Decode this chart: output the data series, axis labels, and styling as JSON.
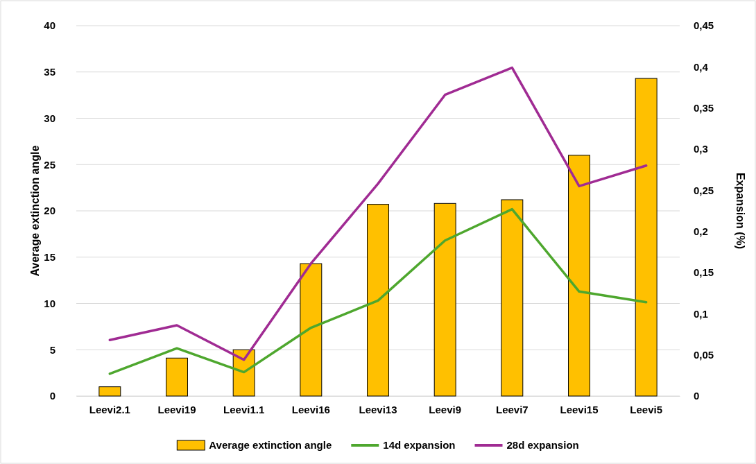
{
  "chart_data": {
    "type": "bar",
    "categories": [
      "Leevi2.1",
      "Leevi19",
      "Leevi1.1",
      "Leevi16",
      "Leevi13",
      "Leevi9",
      "Leevi7",
      "Leevi15",
      "Leevi5"
    ],
    "ylabel": "Average extinction angle",
    "y2label": "Expansion (%)",
    "ylim": [
      0,
      40
    ],
    "yticks": [
      0,
      5,
      10,
      15,
      20,
      25,
      30,
      35,
      40
    ],
    "y2lim": [
      0,
      0.45
    ],
    "y2ticks": [
      {
        "value": 0,
        "label": "0"
      },
      {
        "value": 0.05,
        "label": "0,05"
      },
      {
        "value": 0.1,
        "label": "0,1"
      },
      {
        "value": 0.15,
        "label": "0,15"
      },
      {
        "value": 0.2,
        "label": "0,2"
      },
      {
        "value": 0.25,
        "label": "0,25"
      },
      {
        "value": 0.3,
        "label": "0,3"
      },
      {
        "value": 0.35,
        "label": "0,35"
      },
      {
        "value": 0.4,
        "label": "0,4"
      },
      {
        "value": 0.45,
        "label": "0,45"
      }
    ],
    "grid": "y",
    "legend": "bottom",
    "series": [
      {
        "name": "Average extinction angle",
        "color": "#ffc000",
        "values": [
          1.0,
          4.1,
          5.0,
          14.3,
          20.7,
          20.8,
          21.2,
          26.0,
          34.3
        ]
      },
      {
        "name": "14d expansion",
        "type": "line",
        "axis": "y2",
        "color": "#4ea72e",
        "values": [
          0.027,
          0.058,
          0.029,
          0.083,
          0.116,
          0.189,
          0.227,
          0.127,
          0.114
        ]
      },
      {
        "name": "28d expansion",
        "type": "line",
        "axis": "y2",
        "color": "#a02b93",
        "values": [
          0.068,
          0.086,
          0.044,
          0.161,
          0.258,
          0.366,
          0.399,
          0.255,
          0.28
        ]
      }
    ]
  }
}
